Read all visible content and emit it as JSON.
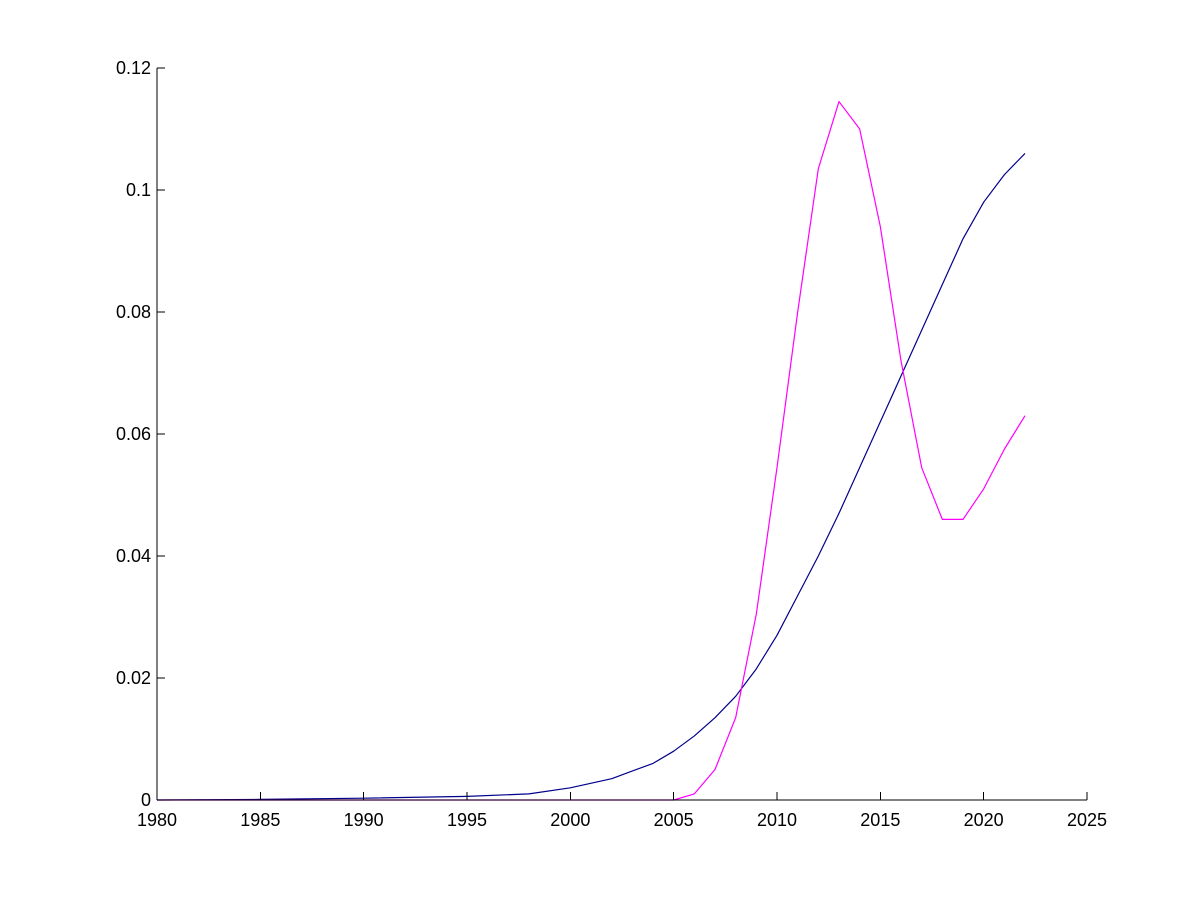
{
  "chart_data": {
    "type": "line",
    "title": "",
    "xlabel": "",
    "ylabel": "",
    "xlim": [
      1980,
      2025
    ],
    "ylim": [
      0,
      0.12
    ],
    "xticks": [
      "1980",
      "1985",
      "1990",
      "1995",
      "2000",
      "2005",
      "2010",
      "2015",
      "2020",
      "2025"
    ],
    "yticks": [
      "0",
      "0.02",
      "0.04",
      "0.06",
      "0.08",
      "0.1",
      "0.12"
    ],
    "grid": false,
    "legend": "none",
    "series": [
      {
        "color": "#00008b",
        "x": [
          1980,
          1985,
          1990,
          1995,
          1998,
          2000,
          2002,
          2004,
          2005,
          2006,
          2007,
          2008,
          2009,
          2010,
          2011,
          2012,
          2013,
          2014,
          2015,
          2016,
          2017,
          2018,
          2019,
          2020,
          2021,
          2022
        ],
        "y": [
          0.0,
          0.0001,
          0.0003,
          0.0006,
          0.001,
          0.002,
          0.0035,
          0.006,
          0.008,
          0.0105,
          0.0135,
          0.017,
          0.0215,
          0.027,
          0.0335,
          0.04,
          0.047,
          0.0545,
          0.062,
          0.0695,
          0.077,
          0.0845,
          0.092,
          0.098,
          0.1025,
          0.106
        ]
      },
      {
        "color": "#ff00ff",
        "x": [
          1980,
          1985,
          1990,
          1995,
          2000,
          2005,
          2006,
          2007,
          2008,
          2009,
          2010,
          2011,
          2012,
          2013,
          2014,
          2015,
          2016,
          2017,
          2018,
          2019,
          2020,
          2021,
          2022
        ],
        "y": [
          0,
          0,
          0,
          0,
          0,
          0,
          0.001,
          0.005,
          0.0135,
          0.0305,
          0.0545,
          0.08,
          0.1035,
          0.1145,
          0.11,
          0.094,
          0.072,
          0.0545,
          0.046,
          0.046,
          0.051,
          0.0575,
          0.063
        ]
      }
    ]
  }
}
